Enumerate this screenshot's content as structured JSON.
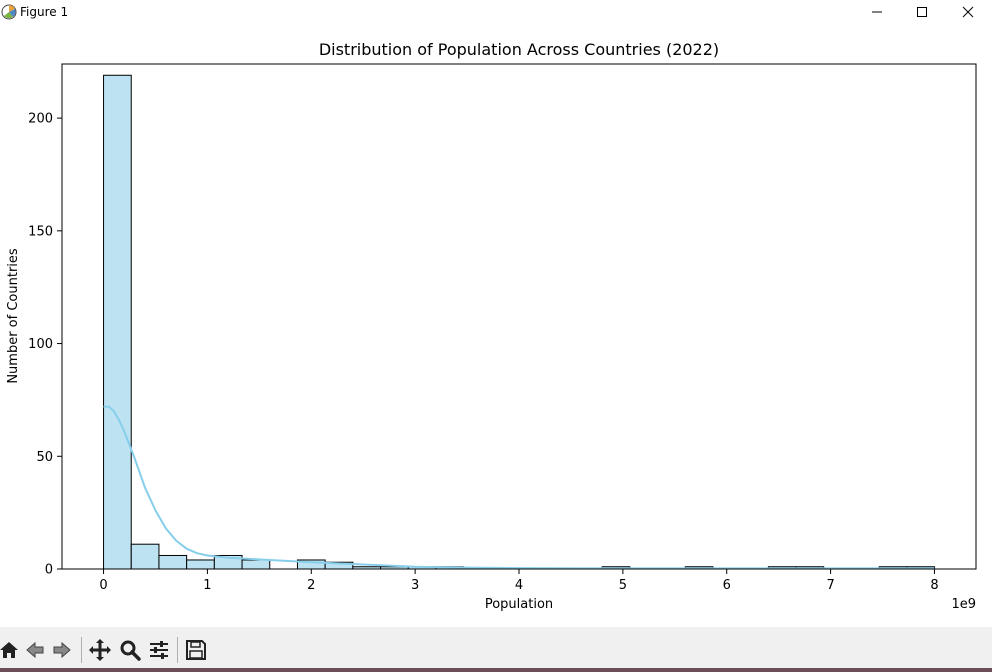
{
  "window": {
    "title": "Figure 1",
    "icons": [
      "matplotlib-icon",
      "minimize-icon",
      "maximize-icon",
      "close-icon"
    ]
  },
  "toolbar": {
    "buttons": [
      {
        "name": "home-icon",
        "tooltip": ""
      },
      {
        "name": "back-icon",
        "tooltip": ""
      },
      {
        "name": "forward-icon",
        "tooltip": ""
      },
      {
        "name": "pan-icon",
        "tooltip": ""
      },
      {
        "name": "zoom-icon",
        "tooltip": ""
      },
      {
        "name": "configure-subplots-icon",
        "tooltip": ""
      },
      {
        "name": "save-icon",
        "tooltip": ""
      }
    ]
  },
  "chart_data": {
    "type": "bar",
    "title": "Distribution of Population Across Countries (2022)",
    "xlabel": "Population",
    "ylabel": "Number of Countries",
    "x_offset_label": "1e9",
    "bar_color": "#bde3f2",
    "edge_color": "#000000",
    "kde_color": "#87ceeb",
    "xlim": [
      -0.4,
      8.4
    ],
    "ylim": [
      0,
      224
    ],
    "xticks": [
      0,
      1,
      2,
      3,
      4,
      5,
      6,
      7,
      8
    ],
    "xtick_labels": [
      "0",
      "1",
      "2",
      "3",
      "4",
      "5",
      "6",
      "7",
      "8"
    ],
    "yticks": [
      0,
      50,
      100,
      150,
      200
    ],
    "ytick_labels": [
      "0",
      "50",
      "100",
      "150",
      "200"
    ],
    "bin_start": 0,
    "bin_width": 0.2667,
    "counts": [
      219,
      11,
      6,
      4,
      6,
      4,
      0,
      4,
      3,
      1,
      1,
      1,
      1,
      0,
      0,
      0,
      0,
      0,
      1,
      0,
      0,
      1,
      0,
      0,
      1,
      1,
      0,
      0,
      1,
      1
    ],
    "kde": {
      "x": [
        0,
        0.05,
        0.1,
        0.15,
        0.2,
        0.3,
        0.4,
        0.5,
        0.6,
        0.7,
        0.8,
        0.9,
        1.0,
        1.2,
        1.4,
        1.6,
        1.8,
        2.0,
        2.5,
        3.0,
        3.5,
        4.0,
        5.0,
        6.0,
        7.0,
        8.0
      ],
      "y": [
        72,
        72,
        70,
        66,
        61,
        49,
        36,
        26,
        18,
        12.5,
        9,
        7,
        6,
        5,
        4.5,
        4,
        3.5,
        3,
        2,
        1,
        0.6,
        0.4,
        0.3,
        0.3,
        0.3,
        0.3
      ]
    }
  }
}
